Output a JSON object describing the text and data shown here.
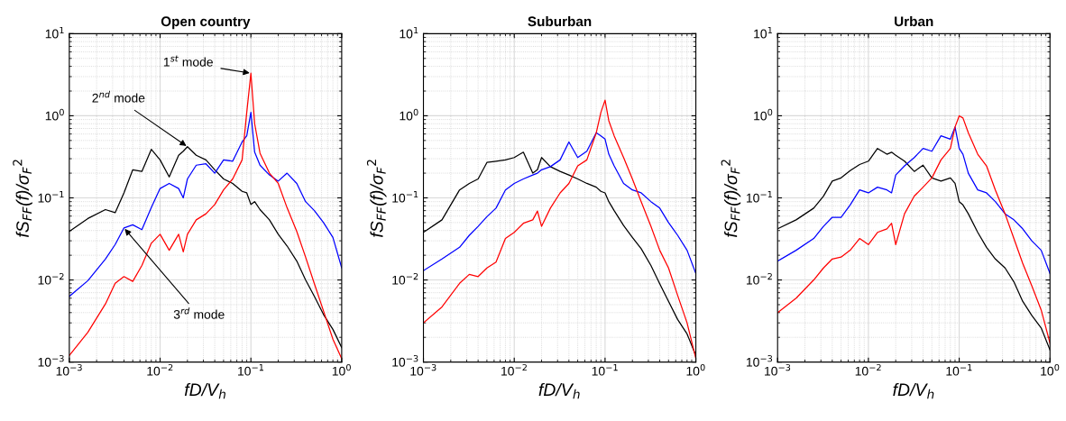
{
  "chart_data": [
    {
      "type": "line",
      "title": "Open country",
      "xlabel": "fD/V$_{h}$",
      "ylabel": "fS$_{FF}$(f)/σ$_{F}$$^{2}$",
      "log": "xy",
      "grid": true,
      "line_style": "solid",
      "xlim": [
        0.001,
        1
      ],
      "ylim": [
        0.001,
        10
      ],
      "xticks": [
        {
          "value": 0.001,
          "label": "10$^{−3}$"
        },
        {
          "value": 0.01,
          "label": "10$^{−2}$"
        },
        {
          "value": 0.1,
          "label": "10$^{−1}$"
        },
        {
          "value": 1,
          "label": "10$^{0}$"
        }
      ],
      "yticks": [
        {
          "value": 0.001,
          "label": "10$^{−3}$"
        },
        {
          "value": 0.01,
          "label": "10$^{−2}$"
        },
        {
          "value": 0.1,
          "label": "10$^{−1}$"
        },
        {
          "value": 1,
          "label": "10$^{0}$"
        },
        {
          "value": 10,
          "label": "10$^{1}$"
        }
      ],
      "x": [
        0.001,
        0.0016,
        0.0025,
        0.0032,
        0.004,
        0.005,
        0.0063,
        0.008,
        0.01,
        0.0126,
        0.016,
        0.018,
        0.02,
        0.025,
        0.032,
        0.04,
        0.05,
        0.063,
        0.08,
        0.09,
        0.1,
        0.11,
        0.126,
        0.16,
        0.2,
        0.25,
        0.32,
        0.4,
        0.5,
        0.63,
        0.8,
        1.0
      ],
      "series": [
        {
          "color": "#000000",
          "values": [
            0.039,
            0.056,
            0.072,
            0.066,
            0.115,
            0.22,
            0.21,
            0.39,
            0.29,
            0.18,
            0.33,
            0.37,
            0.42,
            0.33,
            0.29,
            0.22,
            0.17,
            0.15,
            0.12,
            0.115,
            0.083,
            0.09,
            0.072,
            0.054,
            0.036,
            0.026,
            0.017,
            0.01,
            0.0063,
            0.0038,
            0.0025,
            0.0015
          ]
        },
        {
          "color": "#0000ff",
          "values": [
            0.0063,
            0.0098,
            0.018,
            0.027,
            0.043,
            0.047,
            0.041,
            0.076,
            0.13,
            0.15,
            0.13,
            0.1,
            0.17,
            0.25,
            0.26,
            0.2,
            0.29,
            0.28,
            0.48,
            0.57,
            1.1,
            0.36,
            0.25,
            0.19,
            0.16,
            0.2,
            0.15,
            0.09,
            0.07,
            0.05,
            0.033,
            0.014
          ]
        },
        {
          "color": "#ff0000",
          "values": [
            0.0012,
            0.0023,
            0.0051,
            0.0091,
            0.011,
            0.0096,
            0.015,
            0.028,
            0.036,
            0.023,
            0.036,
            0.022,
            0.036,
            0.054,
            0.064,
            0.083,
            0.125,
            0.17,
            0.29,
            1.1,
            3.3,
            0.8,
            0.35,
            0.2,
            0.15,
            0.076,
            0.039,
            0.019,
            0.009,
            0.0042,
            0.0019,
            0.0011
          ]
        }
      ],
      "annotations": [
        {
          "text": "1$^{st}$ mode",
          "x": 0.1,
          "y": 3.3
        },
        {
          "text": "2$^{nd}$ mode",
          "x": 0.02,
          "y": 0.42
        },
        {
          "text": "3$^{rd}$ mode",
          "x": 0.004,
          "y": 0.043
        }
      ]
    },
    {
      "type": "line",
      "title": "Suburban",
      "xlabel": "fD/V$_{h}$",
      "ylabel": "fS$_{FF}$(f)/σ$_{F}$$^{2}$",
      "log": "xy",
      "grid": true,
      "line_style": "solid",
      "xlim": [
        0.001,
        1
      ],
      "ylim": [
        0.001,
        10
      ],
      "xticks": [
        {
          "value": 0.001,
          "label": "10$^{−3}$"
        },
        {
          "value": 0.01,
          "label": "10$^{−2}$"
        },
        {
          "value": 0.1,
          "label": "10$^{−1}$"
        },
        {
          "value": 1,
          "label": "10$^{0}$"
        }
      ],
      "yticks": [
        {
          "value": 0.001,
          "label": "10$^{−3}$"
        },
        {
          "value": 0.01,
          "label": "10$^{−2}$"
        },
        {
          "value": 0.1,
          "label": "10$^{−1}$"
        },
        {
          "value": 1,
          "label": "10$^{0}$"
        },
        {
          "value": 10,
          "label": "10$^{1}$"
        }
      ],
      "x": [
        0.001,
        0.0016,
        0.0025,
        0.0032,
        0.004,
        0.005,
        0.0063,
        0.008,
        0.01,
        0.0126,
        0.016,
        0.018,
        0.02,
        0.025,
        0.032,
        0.04,
        0.05,
        0.063,
        0.08,
        0.09,
        0.1,
        0.11,
        0.126,
        0.16,
        0.2,
        0.25,
        0.32,
        0.4,
        0.5,
        0.63,
        0.8,
        1.0
      ],
      "series": [
        {
          "color": "#000000",
          "values": [
            0.038,
            0.054,
            0.125,
            0.15,
            0.17,
            0.27,
            0.28,
            0.29,
            0.31,
            0.36,
            0.2,
            0.22,
            0.31,
            0.24,
            0.21,
            0.19,
            0.17,
            0.15,
            0.135,
            0.12,
            0.115,
            0.09,
            0.07,
            0.046,
            0.033,
            0.024,
            0.015,
            0.009,
            0.0055,
            0.0033,
            0.0022,
            0.0012
          ]
        },
        {
          "color": "#0000ff",
          "values": [
            0.013,
            0.018,
            0.025,
            0.035,
            0.045,
            0.059,
            0.075,
            0.125,
            0.15,
            0.17,
            0.19,
            0.2,
            0.22,
            0.24,
            0.29,
            0.48,
            0.31,
            0.37,
            0.62,
            0.57,
            0.52,
            0.34,
            0.245,
            0.15,
            0.125,
            0.115,
            0.09,
            0.075,
            0.05,
            0.035,
            0.023,
            0.012
          ]
        },
        {
          "color": "#ff0000",
          "values": [
            0.003,
            0.0047,
            0.0091,
            0.0117,
            0.011,
            0.014,
            0.0165,
            0.032,
            0.038,
            0.049,
            0.054,
            0.069,
            0.045,
            0.075,
            0.115,
            0.15,
            0.245,
            0.29,
            0.62,
            1.1,
            1.55,
            0.87,
            0.57,
            0.31,
            0.17,
            0.09,
            0.045,
            0.023,
            0.014,
            0.0065,
            0.003,
            0.0011
          ]
        }
      ]
    },
    {
      "type": "line",
      "title": "Urban",
      "xlabel": "fD/V$_{h}$",
      "ylabel": "fS$_{FF}$(f)/σ$_{F}$$^{2}$",
      "log": "xy",
      "grid": true,
      "line_style": "solid",
      "xlim": [
        0.001,
        1
      ],
      "ylim": [
        0.001,
        10
      ],
      "xticks": [
        {
          "value": 0.001,
          "label": "10$^{−3}$"
        },
        {
          "value": 0.01,
          "label": "10$^{−2}$"
        },
        {
          "value": 0.1,
          "label": "10$^{−1}$"
        },
        {
          "value": 1,
          "label": "10$^{0}$"
        }
      ],
      "yticks": [
        {
          "value": 0.001,
          "label": "10$^{−3}$"
        },
        {
          "value": 0.01,
          "label": "10$^{−2}$"
        },
        {
          "value": 0.1,
          "label": "10$^{−1}$"
        },
        {
          "value": 1,
          "label": "10$^{0}$"
        },
        {
          "value": 10,
          "label": "10$^{1}$"
        }
      ],
      "x": [
        0.001,
        0.0016,
        0.0025,
        0.0032,
        0.004,
        0.005,
        0.0063,
        0.008,
        0.01,
        0.0126,
        0.016,
        0.018,
        0.02,
        0.025,
        0.032,
        0.04,
        0.05,
        0.063,
        0.08,
        0.09,
        0.1,
        0.11,
        0.126,
        0.16,
        0.2,
        0.25,
        0.32,
        0.4,
        0.5,
        0.63,
        0.8,
        1.0
      ],
      "series": [
        {
          "color": "#000000",
          "values": [
            0.042,
            0.054,
            0.075,
            0.105,
            0.16,
            0.175,
            0.215,
            0.255,
            0.28,
            0.4,
            0.34,
            0.36,
            0.33,
            0.28,
            0.21,
            0.25,
            0.175,
            0.16,
            0.175,
            0.15,
            0.09,
            0.082,
            0.064,
            0.038,
            0.025,
            0.018,
            0.014,
            0.0095,
            0.0055,
            0.0037,
            0.0026,
            0.0014
          ]
        },
        {
          "color": "#0000ff",
          "values": [
            0.017,
            0.023,
            0.032,
            0.045,
            0.058,
            0.058,
            0.082,
            0.125,
            0.115,
            0.135,
            0.125,
            0.115,
            0.19,
            0.245,
            0.31,
            0.4,
            0.37,
            0.57,
            0.52,
            0.73,
            0.4,
            0.34,
            0.2,
            0.125,
            0.115,
            0.09,
            0.064,
            0.054,
            0.042,
            0.03,
            0.023,
            0.012
          ]
        },
        {
          "color": "#ff0000",
          "values": [
            0.004,
            0.006,
            0.01,
            0.014,
            0.018,
            0.019,
            0.023,
            0.032,
            0.027,
            0.038,
            0.042,
            0.049,
            0.027,
            0.064,
            0.105,
            0.135,
            0.175,
            0.29,
            0.4,
            0.73,
            1.0,
            0.94,
            0.62,
            0.34,
            0.245,
            0.125,
            0.064,
            0.032,
            0.016,
            0.0085,
            0.0043,
            0.0017
          ]
        }
      ]
    }
  ]
}
